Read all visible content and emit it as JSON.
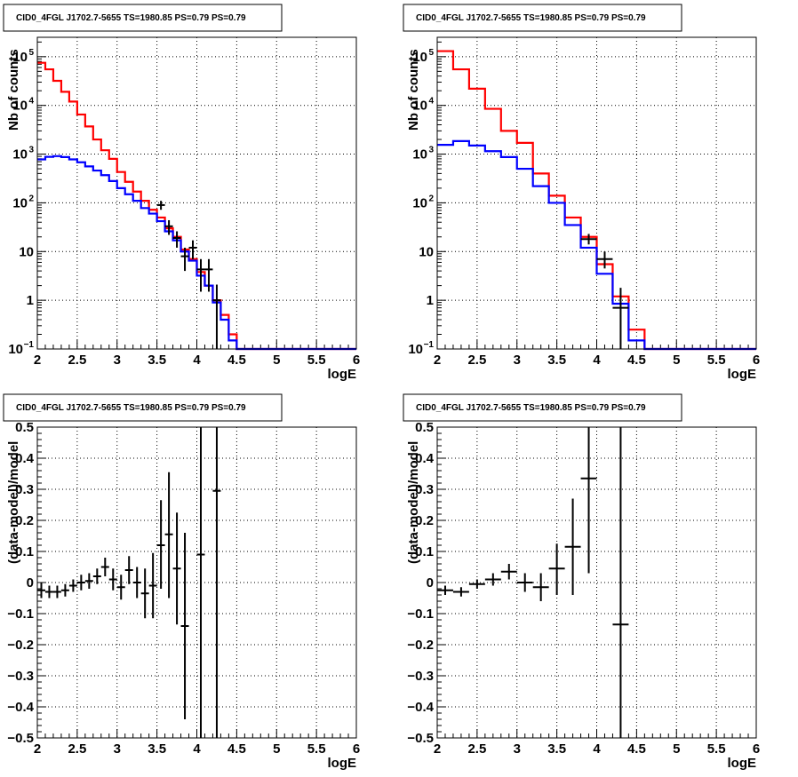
{
  "chart_data": [
    {
      "type": "line",
      "title": "CID0_4FGL J1702.7-5655 TS=1980.85 PS=0.79 PS=0.79",
      "xlabel": "logE",
      "ylabel": "Nb of counts",
      "xlim": [
        2,
        6
      ],
      "ylim": [
        0.1,
        250000
      ],
      "yscale": "log",
      "grid": true,
      "xticks": [
        "2",
        "2.5",
        "3",
        "3.5",
        "4",
        "4.5",
        "5",
        "5.5",
        "6"
      ],
      "yticks": [
        {
          "v": 0.1,
          "t": "10",
          "e": "−1"
        },
        {
          "v": 1,
          "t": "1",
          "e": ""
        },
        {
          "v": 10,
          "t": "10",
          "e": ""
        },
        {
          "v": 100,
          "t": "10",
          "e": "2"
        },
        {
          "v": 1000,
          "t": "10",
          "e": "3"
        },
        {
          "v": 10000,
          "t": "10",
          "e": "4"
        },
        {
          "v": 100000,
          "t": "10",
          "e": "5"
        }
      ],
      "series": [
        {
          "color": "#ff0000",
          "style": "step",
          "x": [
            2.0,
            2.1,
            2.2,
            2.3,
            2.4,
            2.5,
            2.6,
            2.7,
            2.8,
            2.9,
            3.0,
            3.1,
            3.2,
            3.3,
            3.4,
            3.5,
            3.6,
            3.7,
            3.8,
            3.9,
            4.0,
            4.1,
            4.2,
            4.3,
            4.4,
            4.5,
            4.6,
            4.7,
            4.8,
            4.9,
            5.0,
            5.1,
            5.2,
            5.3,
            5.4,
            5.5,
            5.6,
            5.7,
            5.8,
            5.9
          ],
          "y": [
            75000,
            55000,
            32000,
            19000,
            12000,
            6500,
            3700,
            2000,
            1200,
            800,
            430,
            270,
            170,
            110,
            72,
            50,
            30,
            20,
            11,
            7,
            3.8,
            2,
            1,
            0.5,
            0.2,
            0.1,
            0.1,
            0.1,
            0.1,
            0.1,
            0.1,
            0.1,
            0.1,
            0.1,
            0.1,
            0.1,
            0.1,
            0.1,
            0.1,
            0.1
          ]
        },
        {
          "color": "#0000ff",
          "style": "step",
          "x": [
            2.0,
            2.1,
            2.2,
            2.3,
            2.4,
            2.5,
            2.6,
            2.7,
            2.8,
            2.9,
            3.0,
            3.1,
            3.2,
            3.3,
            3.4,
            3.5,
            3.6,
            3.7,
            3.8,
            3.9,
            4.0,
            4.1,
            4.2,
            4.3,
            4.4,
            4.5,
            4.6,
            4.7,
            4.8,
            4.9,
            5.0,
            5.1,
            5.2,
            5.3,
            5.4,
            5.5,
            5.6,
            5.7,
            5.8,
            5.9
          ],
          "y": [
            780,
            880,
            910,
            870,
            780,
            680,
            560,
            460,
            370,
            280,
            200,
            150,
            110,
            78,
            60,
            42,
            26,
            17,
            10,
            6.5,
            3.2,
            2,
            0.9,
            0.4,
            0.15,
            0.1,
            0.1,
            0.1,
            0.1,
            0.1,
            0.1,
            0.1,
            0.1,
            0.1,
            0.1,
            0.1,
            0.1,
            0.1,
            0.1,
            0.1
          ]
        }
      ],
      "points": {
        "x": [
          3.55,
          3.65,
          3.75,
          3.85,
          3.95,
          4.05,
          4.15,
          4.25
        ],
        "y": [
          90,
          33,
          19,
          8,
          12,
          4.3,
          4.3,
          1
        ],
        "xerr": 0.05,
        "ylo": [
          72,
          22,
          12,
          4,
          7,
          1.5,
          1.5,
          0.1
        ],
        "yhi": [
          110,
          44,
          26,
          12,
          17,
          7,
          7,
          2.1
        ]
      }
    },
    {
      "type": "line",
      "title": "CID0_4FGL J1702.7-5655 TS=1980.85 PS=0.79 PS=0.79",
      "xlabel": "logE",
      "ylabel": "Nb of counts",
      "xlim": [
        2,
        6
      ],
      "ylim": [
        0.1,
        250000
      ],
      "yscale": "log",
      "grid": true,
      "xticks": [
        "2",
        "2.5",
        "3",
        "3.5",
        "4",
        "4.5",
        "5",
        "5.5",
        "6"
      ],
      "yticks": [
        {
          "v": 0.1,
          "t": "10",
          "e": "−1"
        },
        {
          "v": 1,
          "t": "1",
          "e": ""
        },
        {
          "v": 10,
          "t": "10",
          "e": ""
        },
        {
          "v": 100,
          "t": "10",
          "e": "2"
        },
        {
          "v": 1000,
          "t": "10",
          "e": "3"
        },
        {
          "v": 10000,
          "t": "10",
          "e": "4"
        },
        {
          "v": 100000,
          "t": "10",
          "e": "5"
        }
      ],
      "series": [
        {
          "color": "#ff0000",
          "style": "step",
          "x": [
            2.0,
            2.2,
            2.4,
            2.6,
            2.8,
            3.0,
            3.2,
            3.4,
            3.6,
            3.8,
            4.0,
            4.2,
            4.4,
            4.6,
            4.8,
            5.0,
            5.2,
            5.4,
            5.6,
            5.8
          ],
          "y": [
            130000,
            55000,
            22000,
            8500,
            3000,
            1700,
            400,
            140,
            50,
            20,
            5.5,
            1.2,
            0.25,
            0.1,
            0.1,
            0.1,
            0.1,
            0.1,
            0.1,
            0.1
          ]
        },
        {
          "color": "#0000ff",
          "style": "step",
          "x": [
            2.0,
            2.2,
            2.4,
            2.6,
            2.8,
            3.0,
            3.2,
            3.4,
            3.6,
            3.8,
            4.0,
            4.2,
            4.4,
            4.6,
            4.8,
            5.0,
            5.2,
            5.4,
            5.6,
            5.8
          ],
          "y": [
            1550,
            1850,
            1500,
            1150,
            870,
            500,
            220,
            100,
            35,
            12,
            3.5,
            0.85,
            0.15,
            0.1,
            0.1,
            0.1,
            0.1,
            0.1,
            0.1,
            0.1
          ]
        }
      ],
      "points": {
        "x": [
          3.9,
          4.1,
          4.3
        ],
        "y": [
          18,
          7,
          0.7
        ],
        "xerr": 0.1,
        "ylo": [
          14,
          4.5,
          0.1
        ],
        "yhi": [
          23,
          10,
          1.8
        ]
      }
    },
    {
      "type": "scatter",
      "title": "CID0_4FGL J1702.7-5655 TS=1980.85 PS=0.79 PS=0.79",
      "xlabel": "logE",
      "ylabel": "(data-model)/model",
      "xlim": [
        2,
        6
      ],
      "ylim": [
        -0.5,
        0.5
      ],
      "yscale": "linear",
      "grid": true,
      "xticks": [
        "2",
        "2.5",
        "3",
        "3.5",
        "4",
        "4.5",
        "5",
        "5.5",
        "6"
      ],
      "yticks": [
        {
          "v": -0.5,
          "t": "−0.5"
        },
        {
          "v": -0.4,
          "t": "−0.4"
        },
        {
          "v": -0.3,
          "t": "−0.3"
        },
        {
          "v": -0.2,
          "t": "−0.2"
        },
        {
          "v": -0.1,
          "t": "−0.1"
        },
        {
          "v": 0,
          "t": "0"
        },
        {
          "v": 0.1,
          "t": "0.1"
        },
        {
          "v": 0.2,
          "t": "0.2"
        },
        {
          "v": 0.3,
          "t": "0.3"
        },
        {
          "v": 0.4,
          "t": "0.4"
        },
        {
          "v": 0.5,
          "t": "0.5"
        }
      ],
      "points": {
        "x": [
          2.05,
          2.15,
          2.25,
          2.35,
          2.45,
          2.55,
          2.65,
          2.75,
          2.85,
          2.95,
          3.05,
          3.15,
          3.25,
          3.35,
          3.45,
          3.55,
          3.65,
          3.75,
          3.85,
          4.05,
          4.25
        ],
        "y": [
          -0.025,
          -0.03,
          -0.03,
          -0.025,
          -0.01,
          0.0,
          0.005,
          0.02,
          0.05,
          0.01,
          -0.015,
          0.04,
          0.0,
          -0.035,
          -0.01,
          0.12,
          0.155,
          0.045,
          -0.14,
          0.09,
          0.295
        ],
        "xerr": 0.05,
        "ylo": [
          -0.05,
          -0.05,
          -0.05,
          -0.045,
          -0.03,
          -0.025,
          -0.02,
          -0.005,
          0.02,
          -0.025,
          -0.055,
          -0.005,
          -0.05,
          -0.115,
          -0.115,
          -0.02,
          -0.05,
          -0.135,
          -0.44,
          -0.5,
          -0.5
        ],
        "yhi": [
          0.0,
          -0.01,
          -0.01,
          -0.005,
          0.01,
          0.025,
          0.03,
          0.045,
          0.08,
          0.045,
          0.025,
          0.085,
          0.05,
          0.045,
          0.095,
          0.265,
          0.355,
          0.225,
          0.16,
          0.5,
          0.5
        ]
      }
    },
    {
      "type": "scatter",
      "title": "CID0_4FGL J1702.7-5655 TS=1980.85 PS=0.79 PS=0.79",
      "xlabel": "logE",
      "ylabel": "(data-model)/model",
      "xlim": [
        2,
        6
      ],
      "ylim": [
        -0.5,
        0.5
      ],
      "yscale": "linear",
      "grid": true,
      "xticks": [
        "2",
        "2.5",
        "3",
        "3.5",
        "4",
        "4.5",
        "5",
        "5.5",
        "6"
      ],
      "yticks": [
        {
          "v": -0.5,
          "t": "−0.5"
        },
        {
          "v": -0.4,
          "t": "−0.4"
        },
        {
          "v": -0.3,
          "t": "−0.3"
        },
        {
          "v": -0.2,
          "t": "−0.2"
        },
        {
          "v": -0.1,
          "t": "−0.1"
        },
        {
          "v": 0,
          "t": "0"
        },
        {
          "v": 0.1,
          "t": "0.1"
        },
        {
          "v": 0.2,
          "t": "0.2"
        },
        {
          "v": 0.3,
          "t": "0.3"
        },
        {
          "v": 0.4,
          "t": "0.4"
        },
        {
          "v": 0.5,
          "t": "0.5"
        }
      ],
      "points": {
        "x": [
          2.1,
          2.3,
          2.5,
          2.7,
          2.9,
          3.1,
          3.3,
          3.5,
          3.7,
          3.9,
          4.3
        ],
        "y": [
          -0.025,
          -0.03,
          -0.005,
          0.01,
          0.035,
          0.0,
          -0.015,
          0.045,
          0.115,
          0.335,
          -0.135
        ],
        "xerr": 0.1,
        "ylo": [
          -0.04,
          -0.045,
          -0.02,
          -0.01,
          0.01,
          -0.03,
          -0.06,
          -0.04,
          -0.04,
          0.03,
          -0.5
        ],
        "yhi": [
          -0.01,
          -0.015,
          0.01,
          0.03,
          0.06,
          0.03,
          0.03,
          0.125,
          0.27,
          0.5,
          0.5
        ]
      }
    }
  ]
}
